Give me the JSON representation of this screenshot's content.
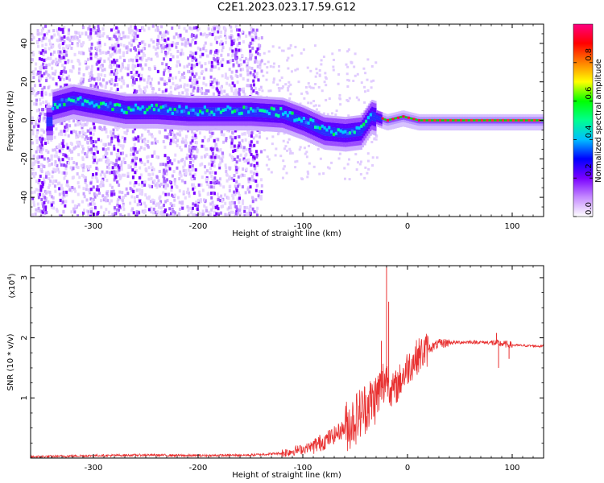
{
  "title": "C2E1.2023.023.17.59.G12",
  "colors": {
    "snr_line": "#e83030",
    "colormap": [
      "#ffffff",
      "#c58bff",
      "#7a00ff",
      "#0000ff",
      "#00bfff",
      "#00ff90",
      "#00ff00",
      "#ffff00",
      "#ff8000",
      "#ff0000",
      "#ff0080"
    ]
  },
  "chart_data": [
    {
      "type": "heatmap",
      "panel": "top",
      "xlabel": "Height of straight line (km)",
      "ylabel": "Frequency (Hz)",
      "xlim": [
        -360,
        130
      ],
      "ylim": [
        -50,
        50
      ],
      "xticks": [
        -300,
        -200,
        -100,
        0,
        100
      ],
      "yticks": [
        -40,
        -20,
        0,
        20,
        40
      ],
      "ridge": [
        {
          "x": -340,
          "y": 8
        },
        {
          "x": -320,
          "y": 11
        },
        {
          "x": -300,
          "y": 9
        },
        {
          "x": -270,
          "y": 6
        },
        {
          "x": -240,
          "y": 6
        },
        {
          "x": -210,
          "y": 5
        },
        {
          "x": -180,
          "y": 5
        },
        {
          "x": -150,
          "y": 5
        },
        {
          "x": -120,
          "y": 4
        },
        {
          "x": -100,
          "y": 0
        },
        {
          "x": -80,
          "y": -5
        },
        {
          "x": -60,
          "y": -6
        },
        {
          "x": -45,
          "y": -5
        },
        {
          "x": -35,
          "y": 3
        },
        {
          "x": -20,
          "y": 0
        },
        {
          "x": -5,
          "y": 2
        },
        {
          "x": 10,
          "y": 0
        },
        {
          "x": 130,
          "y": 0
        }
      ],
      "scatter_band_end_x": -140,
      "colorbar": {
        "label": "Normalized spectral amplitude",
        "range": [
          0,
          1
        ],
        "ticks": [
          "0.0",
          "0.2",
          "0.4",
          "0.6",
          "0.8"
        ]
      }
    },
    {
      "type": "line",
      "panel": "bottom",
      "xlabel": "Height of straight line (km)",
      "ylabel": "SNR (10 * v/v)",
      "scale_label": "(x10",
      "scale_exp": "4",
      "scale_close": ")",
      "xlim": [
        -360,
        130
      ],
      "ylim": [
        0,
        3.2
      ],
      "xticks": [
        -300,
        -200,
        -100,
        0,
        100
      ],
      "yticks": [
        1,
        2,
        3
      ],
      "series": [
        {
          "x": [
            -360,
            -300,
            -250,
            -200,
            -150,
            -120,
            -100,
            -90,
            -80,
            -70,
            -60,
            -50,
            -40,
            -30,
            -20,
            -15,
            -10,
            0,
            10,
            20,
            30,
            40,
            60,
            80,
            90,
            100,
            110,
            130
          ],
          "y": [
            0.02,
            0.04,
            0.05,
            0.04,
            0.05,
            0.08,
            0.15,
            0.2,
            0.28,
            0.38,
            0.5,
            0.65,
            0.85,
            1.0,
            1.35,
            1.1,
            1.2,
            1.5,
            1.7,
            1.82,
            1.9,
            1.92,
            1.93,
            1.92,
            1.9,
            1.88,
            1.87,
            1.86
          ]
        }
      ],
      "spikes": [
        {
          "x": -20,
          "y": 3.2
        },
        {
          "x": -18,
          "y": 2.6
        },
        {
          "x": -25,
          "y": 1.95
        },
        {
          "x": 85,
          "y": 2.08
        },
        {
          "x": 87,
          "y": 1.5
        },
        {
          "x": 97,
          "y": 1.65
        }
      ]
    }
  ]
}
